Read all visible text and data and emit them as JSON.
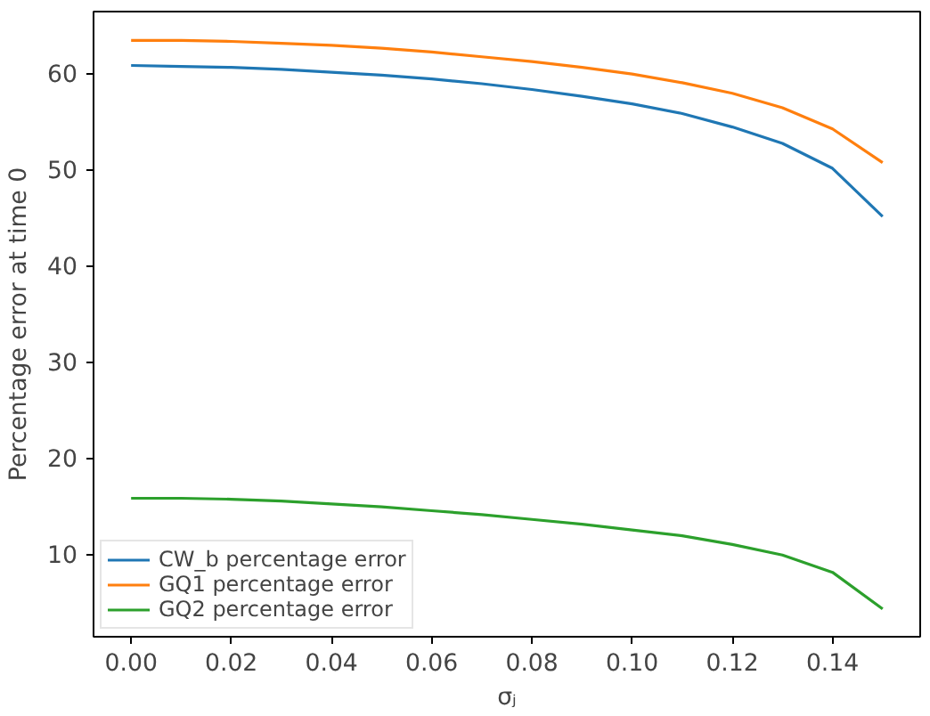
{
  "chart_data": {
    "type": "line",
    "xlabel": "σⱼ",
    "ylabel": "Percentage error at time 0",
    "x": [
      0,
      0.01,
      0.02,
      0.03,
      0.04,
      0.05,
      0.06,
      0.07,
      0.08,
      0.09,
      0.1,
      0.11,
      0.12,
      0.13,
      0.14,
      0.15
    ],
    "series": [
      {
        "name": "CW_b percentage error",
        "color": "#1f77b4",
        "values": [
          60.8,
          60.7,
          60.6,
          60.4,
          60.1,
          59.8,
          59.4,
          58.9,
          58.3,
          57.6,
          56.8,
          55.8,
          54.4,
          52.7,
          50.1,
          45.1
        ]
      },
      {
        "name": "GQ1 percentage error",
        "color": "#ff7f0e",
        "values": [
          63.4,
          63.4,
          63.3,
          63.1,
          62.9,
          62.6,
          62.2,
          61.7,
          61.2,
          60.6,
          59.9,
          59.0,
          57.9,
          56.4,
          54.2,
          50.7
        ]
      },
      {
        "name": "GQ2 percentage error",
        "color": "#2ca02c",
        "values": [
          15.8,
          15.8,
          15.7,
          15.5,
          15.2,
          14.9,
          14.5,
          14.1,
          13.6,
          13.1,
          12.5,
          11.9,
          11.0,
          9.9,
          8.1,
          4.3
        ]
      }
    ],
    "xlim": [
      -0.0075,
      0.1575
    ],
    "ylim": [
      1.4,
      66.4
    ],
    "xticks": [
      {
        "value": 0,
        "label": "0.00"
      },
      {
        "value": 0.02,
        "label": "0.02"
      },
      {
        "value": 0.04,
        "label": "0.04"
      },
      {
        "value": 0.06,
        "label": "0.06"
      },
      {
        "value": 0.08,
        "label": "0.08"
      },
      {
        "value": 0.1,
        "label": "0.10"
      },
      {
        "value": 0.12,
        "label": "0.12"
      },
      {
        "value": 0.14,
        "label": "0.14"
      }
    ],
    "yticks": [
      10,
      20,
      30,
      40,
      50,
      60
    ],
    "legend": "bottom left",
    "grid": false,
    "marker": "none",
    "line_style": "solid"
  }
}
